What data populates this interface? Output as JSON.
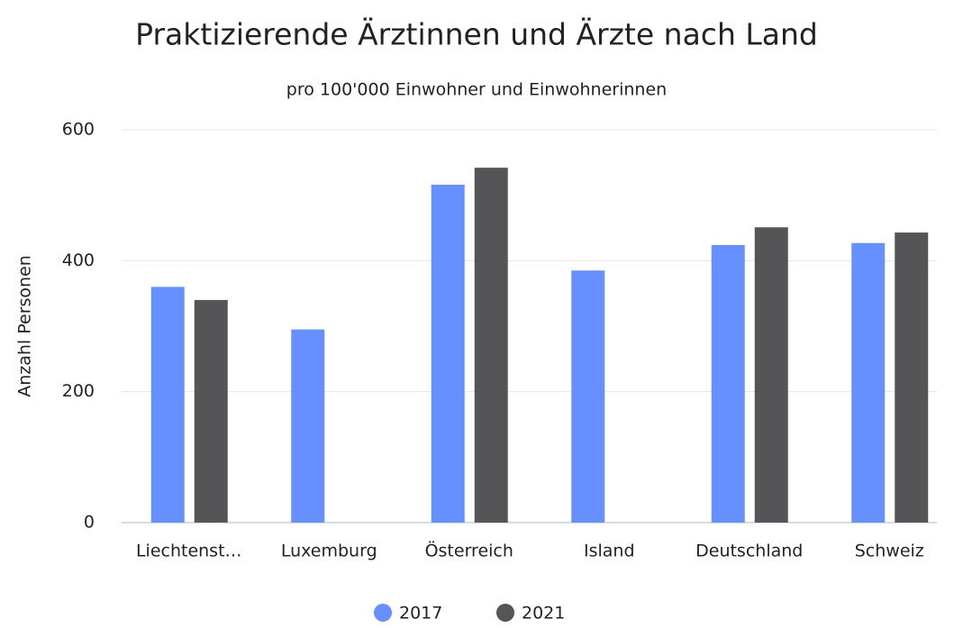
{
  "chart_data": {
    "type": "bar",
    "title": "Praktizierende Ärztinnen und Ärzte nach Land",
    "subtitle": "pro 100'000 Einwohner und Einwohnerinnen",
    "y_label": "Anzahl Personen",
    "categories": [
      "Liechtenst…",
      "Luxemburg",
      "Österreich",
      "Island",
      "Deutschland",
      "Schweiz"
    ],
    "series": [
      {
        "name": "2017",
        "color": "#6690ff",
        "values": [
          360,
          295,
          516,
          385,
          424,
          427
        ]
      },
      {
        "name": "2021",
        "color": "#555557",
        "values": [
          340,
          null,
          542,
          null,
          451,
          443
        ]
      }
    ],
    "ylim": [
      0,
      600
    ],
    "yticks": [
      0,
      200,
      400,
      600
    ],
    "grid": true,
    "legend": "bottom"
  }
}
